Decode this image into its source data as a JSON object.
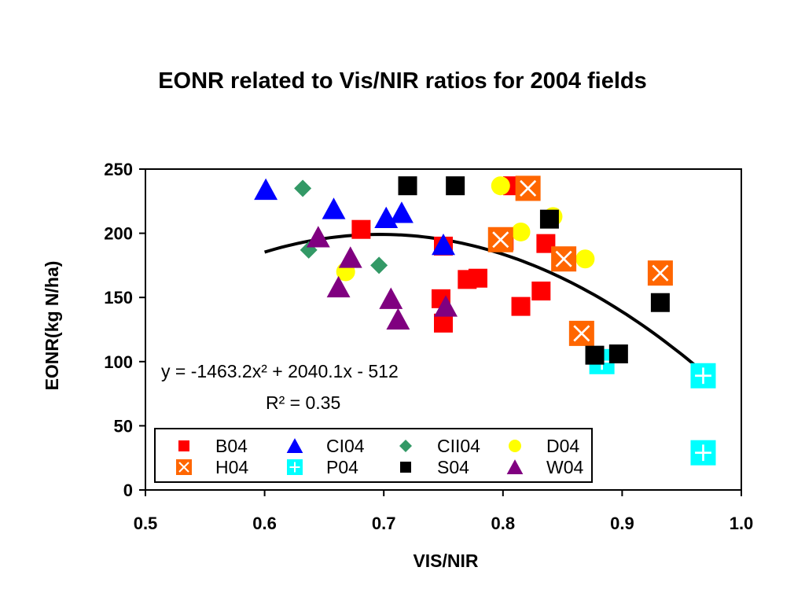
{
  "chart_data": {
    "type": "scatter",
    "title": "EONR related to Vis/NIR ratios for 2004 fields",
    "xlabel": "VIS/NIR",
    "ylabel": "EONR(kg N/ha)",
    "xlim": [
      0.5,
      1.0
    ],
    "ylim": [
      0,
      250
    ],
    "x_ticks": [
      "0.5",
      "0.6",
      "0.7",
      "0.8",
      "0.9",
      "1.0"
    ],
    "y_ticks": [
      "0",
      "50",
      "100",
      "150",
      "200",
      "250"
    ],
    "grid": false,
    "legend_position": "bottom-left",
    "series": [
      {
        "name": "B04",
        "marker": "square",
        "color": "#ff0000",
        "points": [
          [
            0.681,
            203
          ],
          [
            0.75,
            190
          ],
          [
            0.748,
            149
          ],
          [
            0.75,
            130
          ],
          [
            0.77,
            164
          ],
          [
            0.779,
            165
          ],
          [
            0.808,
            237
          ],
          [
            0.801,
            194
          ],
          [
            0.815,
            143
          ],
          [
            0.836,
            192
          ],
          [
            0.832,
            155
          ]
        ]
      },
      {
        "name": "CI04",
        "marker": "triangle",
        "color": "#0000ff",
        "points": [
          [
            0.601,
            234
          ],
          [
            0.658,
            219
          ],
          [
            0.702,
            212
          ],
          [
            0.715,
            216
          ],
          [
            0.75,
            191
          ]
        ]
      },
      {
        "name": "CII04",
        "marker": "diamond",
        "color": "#339966",
        "points": [
          [
            0.632,
            235
          ],
          [
            0.637,
            187
          ],
          [
            0.696,
            175
          ]
        ]
      },
      {
        "name": "D04",
        "marker": "circle",
        "color": "#ffff00",
        "points": [
          [
            0.798,
            237
          ],
          [
            0.815,
            201
          ],
          [
            0.842,
            213
          ],
          [
            0.869,
            180
          ],
          [
            0.668,
            170
          ]
        ]
      },
      {
        "name": "H04",
        "marker": "x-square",
        "color": "#ff6600",
        "points": [
          [
            0.821,
            235
          ],
          [
            0.798,
            195
          ],
          [
            0.851,
            180
          ],
          [
            0.866,
            122
          ],
          [
            0.932,
            169
          ]
        ]
      },
      {
        "name": "P04",
        "marker": "plus-square",
        "color": "#00ffff",
        "points": [
          [
            0.883,
            100
          ],
          [
            0.968,
            89
          ],
          [
            0.968,
            29
          ]
        ]
      },
      {
        "name": "S04",
        "marker": "square",
        "color": "#000000",
        "points": [
          [
            0.72,
            237
          ],
          [
            0.76,
            237
          ],
          [
            0.839,
            211
          ],
          [
            0.877,
            105
          ],
          [
            0.897,
            106
          ],
          [
            0.932,
            146
          ]
        ]
      },
      {
        "name": "W04",
        "marker": "triangle",
        "color": "#800080",
        "points": [
          [
            0.645,
            197
          ],
          [
            0.672,
            181
          ],
          [
            0.662,
            158
          ],
          [
            0.706,
            149
          ],
          [
            0.712,
            133
          ],
          [
            0.752,
            143
          ]
        ]
      }
    ],
    "trendline": {
      "coefficients": {
        "a": -1463.2,
        "b": 2040.1,
        "c": -512
      },
      "x_range": [
        0.6,
        0.968
      ],
      "equation_text": "y = -1463.2x² + 2040.1x - 512",
      "r2_text": "R² = 0.35"
    },
    "legend_entries": [
      "B04",
      "CI04",
      "CII04",
      "D04",
      "H04",
      "P04",
      "S04",
      "W04"
    ]
  }
}
